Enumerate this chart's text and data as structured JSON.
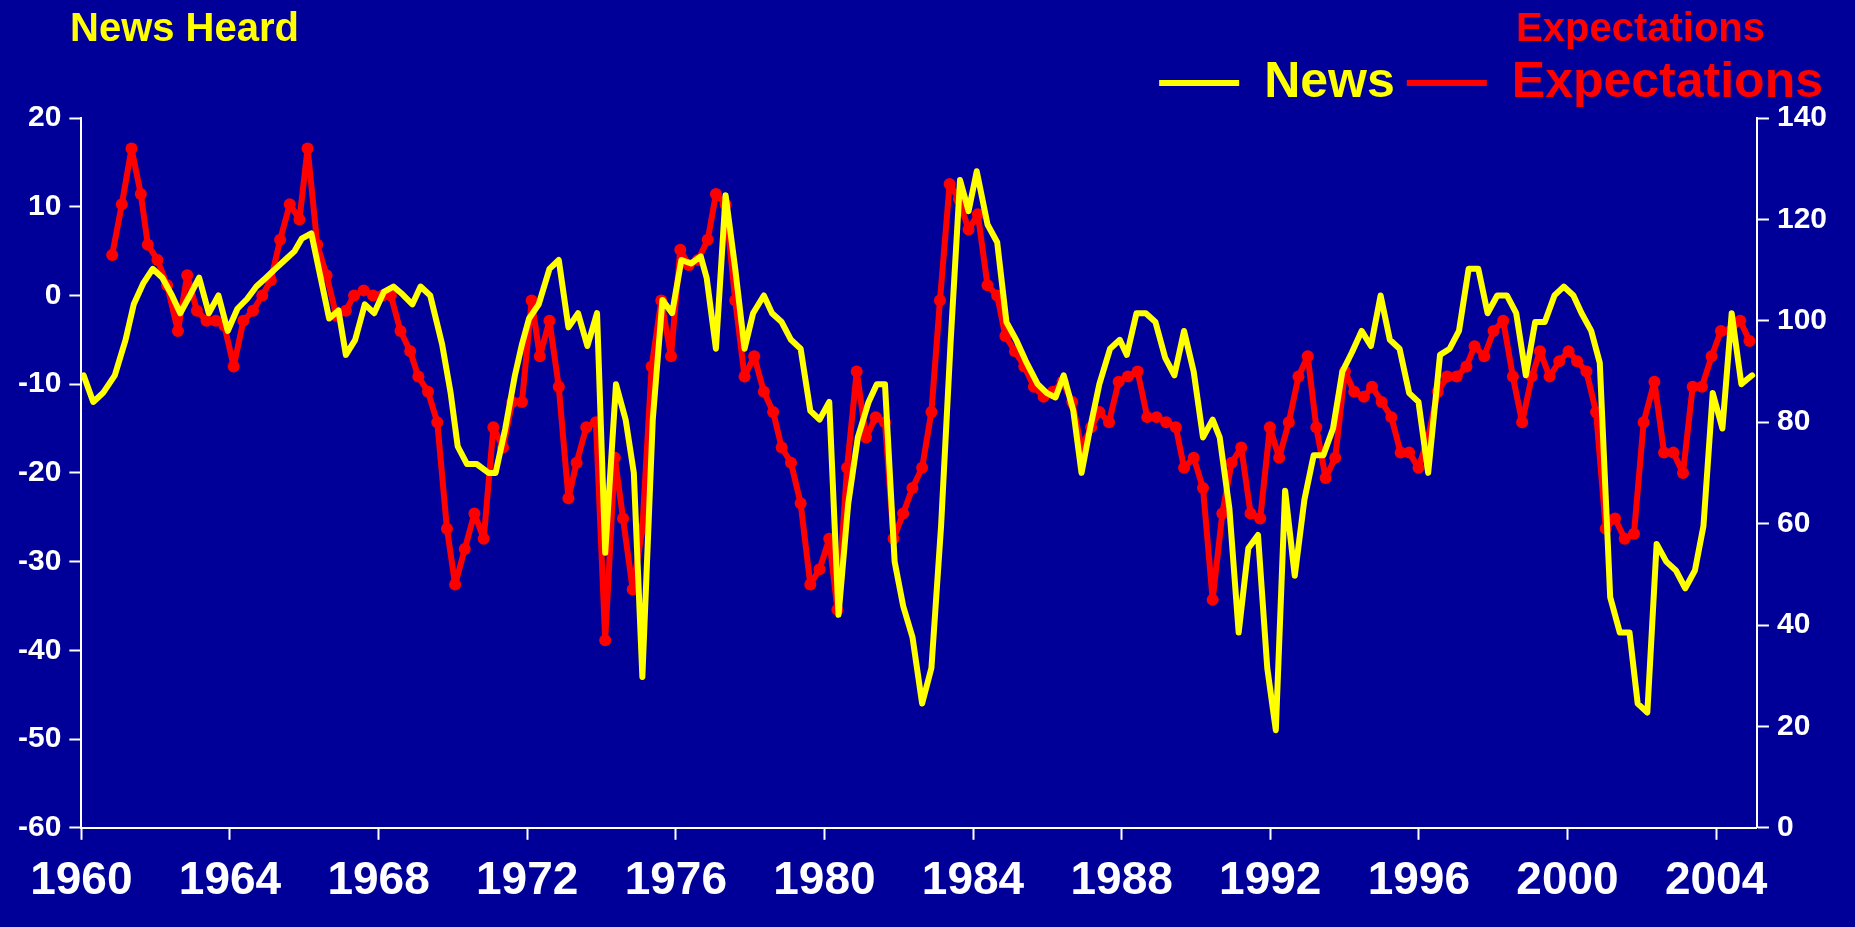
{
  "chart_data": {
    "type": "line",
    "ylabel": "News Heard",
    "y2label": "Expectations",
    "xlim": [
      1960,
      2005.1
    ],
    "xticks": [
      1960,
      1964,
      1968,
      1972,
      1976,
      1980,
      1984,
      1988,
      1992,
      1996,
      2000,
      2004
    ],
    "ylim": [
      -60,
      20
    ],
    "yticks": [
      -60,
      -50,
      -40,
      -30,
      -20,
      -10,
      0,
      10,
      20
    ],
    "y2lim": [
      0,
      140
    ],
    "y2ticks": [
      0,
      20,
      40,
      60,
      80,
      100,
      120,
      140
    ],
    "grid": false,
    "legend": "top right",
    "line_style": "solid",
    "series": [
      {
        "name": "News",
        "color": "#ffff00",
        "marker": "none",
        "x": [
          1960.06,
          1960.32,
          1960.58,
          1960.9,
          1961.19,
          1961.41,
          1961.67,
          1961.92,
          1962.18,
          1962.44,
          1962.66,
          1962.92,
          1963.17,
          1963.43,
          1963.69,
          1963.94,
          1964.2,
          1964.46,
          1964.71,
          1964.97,
          1965.22,
          1965.48,
          1965.74,
          1965.93,
          1966.19,
          1966.44,
          1966.67,
          1966.92,
          1967.12,
          1967.37,
          1967.63,
          1967.88,
          1968.14,
          1968.4,
          1968.65,
          1968.91,
          1969.13,
          1969.39,
          1969.71,
          1969.94,
          1970.13,
          1970.38,
          1970.64,
          1970.96,
          1971.15,
          1971.41,
          1971.67,
          1971.86,
          1972.05,
          1972.31,
          1972.6,
          1972.85,
          1973.11,
          1973.37,
          1973.62,
          1973.88,
          1974.1,
          1974.39,
          1974.65,
          1974.87,
          1975.1,
          1975.38,
          1975.64,
          1975.9,
          1976.15,
          1976.41,
          1976.67,
          1976.83,
          1977.08,
          1977.34,
          1977.6,
          1977.85,
          1978.08,
          1978.37,
          1978.59,
          1978.85,
          1979.1,
          1979.36,
          1979.62,
          1979.87,
          1980.13,
          1980.38,
          1980.64,
          1980.9,
          1981.19,
          1981.41,
          1981.63,
          1981.89,
          1982.12,
          1982.37,
          1982.63,
          1982.88,
          1983.14,
          1983.4,
          1983.65,
          1983.88,
          1984.1,
          1984.39,
          1984.65,
          1984.9,
          1985.16,
          1985.42,
          1985.74,
          1985.99,
          1986.22,
          1986.44,
          1986.7,
          1986.92,
          1987.15,
          1987.4,
          1987.69,
          1987.95,
          1988.14,
          1988.4,
          1988.65,
          1988.91,
          1989.17,
          1989.42,
          1989.68,
          1989.94,
          1990.19,
          1990.45,
          1990.64,
          1990.9,
          1991.15,
          1991.41,
          1991.67,
          1991.92,
          1992.15,
          1992.4,
          1992.66,
          1992.92,
          1993.17,
          1993.43,
          1993.69,
          1993.94,
          1994.2,
          1994.46,
          1994.71,
          1994.97,
          1995.22,
          1995.48,
          1995.74,
          1995.99,
          1996.25,
          1996.57,
          1996.83,
          1997.08,
          1997.34,
          1997.6,
          1997.85,
          1998.11,
          1998.37,
          1998.62,
          1998.88,
          1999.13,
          1999.39,
          1999.65,
          1999.9,
          2000.16,
          2000.38,
          2000.64,
          2000.87,
          2001.15,
          2001.41,
          2001.67,
          2001.89,
          2002.15,
          2002.4,
          2002.66,
          2002.92,
          2003.17,
          2003.43,
          2003.66,
          2003.91,
          2004.17,
          2004.42,
          2004.68,
          2004.97
        ],
        "values": [
          -9,
          -12,
          -11,
          -9,
          -5,
          -1,
          1.4,
          3,
          2,
          0,
          -2,
          0,
          2,
          -2,
          0,
          -4,
          -1.5,
          -0.4,
          1,
          2,
          3,
          4,
          5,
          6.4,
          7,
          2,
          -2.6,
          -1.7,
          -6.7,
          -5,
          -1,
          -2,
          0.4,
          1,
          0.1,
          -1,
          1,
          0,
          -5.5,
          -11,
          -17,
          -19,
          -19,
          -20,
          -20,
          -15,
          -9,
          -5.5,
          -2.6,
          -1,
          3,
          4,
          -3.6,
          -2,
          -5.7,
          -2,
          -29,
          -10,
          -14,
          -20,
          -43,
          -14,
          -0.5,
          -2,
          4,
          3.6,
          4.4,
          2,
          -6,
          11.3,
          3,
          -6,
          -2,
          0,
          -2,
          -3,
          -5,
          -6,
          -13,
          -14,
          -12,
          -36,
          -23.5,
          -16,
          -12,
          -10,
          -10,
          -30,
          -35,
          -38.5,
          -46,
          -42,
          -26,
          -5,
          13,
          9.5,
          14,
          8,
          6,
          -3,
          -5,
          -7.4,
          -10,
          -11,
          -11.5,
          -9,
          -13,
          -20,
          -15,
          -10,
          -6,
          -5,
          -6.7,
          -2,
          -2,
          -3,
          -7,
          -9,
          -4,
          -8.6,
          -16,
          -14,
          -16,
          -24,
          -38,
          -28.5,
          -27,
          -42,
          -49,
          -22,
          -31.6,
          -23,
          -18,
          -18,
          -15,
          -8.6,
          -6.4,
          -4,
          -5.7,
          0,
          -5,
          -6,
          -11,
          -12,
          -20,
          -6.7,
          -6,
          -4,
          3,
          3,
          -2,
          0,
          0,
          -2,
          -9,
          -3,
          -3,
          0,
          1,
          0,
          -2,
          -4,
          -7.6,
          -34,
          -38,
          -38,
          -46,
          -47,
          -28,
          -30,
          -31,
          -33,
          -31,
          -26,
          -11,
          -15,
          -2,
          -10,
          -9
        ]
      },
      {
        "name": "Expectations",
        "color": "#ff0000",
        "marker": "circle",
        "axis": "y2",
        "x": [
          1960.83,
          1961.09,
          1961.35,
          1961.6,
          1961.79,
          1962.05,
          1962.31,
          1962.6,
          1962.85,
          1963.11,
          1963.37,
          1963.62,
          1963.85,
          1964.1,
          1964.36,
          1964.62,
          1964.87,
          1965.1,
          1965.35,
          1965.61,
          1965.87,
          1966.09,
          1966.35,
          1966.6,
          1966.86,
          1967.12,
          1967.34,
          1967.6,
          1967.85,
          1968.11,
          1968.33,
          1968.59,
          1968.85,
          1969.07,
          1969.33,
          1969.58,
          1969.84,
          1970.06,
          1970.32,
          1970.58,
          1970.83,
          1971.09,
          1971.35,
          1971.6,
          1971.86,
          1972.12,
          1972.34,
          1972.6,
          1972.85,
          1973.11,
          1973.33,
          1973.59,
          1973.85,
          1974.1,
          1974.36,
          1974.58,
          1974.84,
          1975.1,
          1975.35,
          1975.61,
          1975.87,
          1976.12,
          1976.35,
          1976.6,
          1976.86,
          1977.08,
          1977.34,
          1977.6,
          1977.85,
          1978.11,
          1978.37,
          1978.62,
          1978.85,
          1979.1,
          1979.36,
          1979.62,
          1979.87,
          1980.13,
          1980.35,
          1980.61,
          1980.87,
          1981.12,
          1981.38,
          1981.63,
          1981.86,
          1982.12,
          1982.37,
          1982.63,
          1982.88,
          1983.11,
          1983.37,
          1983.62,
          1983.88,
          1984.13,
          1984.39,
          1984.65,
          1984.87,
          1985.13,
          1985.38,
          1985.64,
          1985.9,
          1986.15,
          1986.41,
          1986.67,
          1986.92,
          1987.18,
          1987.4,
          1987.66,
          1987.92,
          1988.17,
          1988.43,
          1988.69,
          1988.94,
          1989.2,
          1989.46,
          1989.68,
          1989.94,
          1990.19,
          1990.45,
          1990.71,
          1990.96,
          1991.22,
          1991.47,
          1991.73,
          1991.99,
          1992.24,
          1992.5,
          1992.76,
          1993.01,
          1993.24,
          1993.49,
          1993.75,
          1994.01,
          1994.26,
          1994.52,
          1994.74,
          1995,
          1995.26,
          1995.51,
          1995.74,
          1995.99,
          1996.25,
          1996.51,
          1996.76,
          1997.02,
          1997.28,
          1997.5,
          1997.76,
          1998.01,
          1998.27,
          1998.53,
          1998.78,
          1999.04,
          1999.26,
          1999.52,
          1999.78,
          2000.03,
          2000.26,
          2000.51,
          2000.77,
          2001.03,
          2001.28,
          2001.54,
          2001.79,
          2002.05,
          2002.34,
          2002.6,
          2002.85,
          2003.11,
          2003.37,
          2003.62,
          2003.88,
          2004.13,
          2004.39,
          2004.65,
          2004.9
        ],
        "values": [
          113,
          123,
          134,
          125,
          115,
          112,
          107,
          98,
          109,
          102,
          100,
          100,
          99,
          91,
          100,
          102,
          105,
          108,
          116,
          123,
          120,
          134,
          115,
          109,
          101,
          102,
          105,
          106,
          105,
          105,
          105,
          98,
          94,
          89,
          86,
          80,
          59,
          48,
          55,
          62,
          57,
          79,
          75,
          84,
          84,
          104,
          93,
          100,
          87,
          65,
          72,
          79,
          80,
          37,
          73,
          61,
          47,
          59,
          91,
          104,
          93,
          114,
          111,
          112,
          116,
          125,
          123,
          104,
          89,
          93,
          86,
          82,
          75,
          72,
          64,
          48,
          51,
          57,
          43,
          71,
          90,
          77,
          81,
          80,
          57,
          62,
          67,
          71,
          82,
          104,
          127,
          124,
          118,
          121,
          107,
          105,
          97,
          94,
          91,
          87,
          85,
          86,
          88,
          84,
          75,
          79,
          82,
          80,
          88,
          89,
          90,
          81,
          81,
          80,
          79,
          71,
          73,
          67,
          45,
          62,
          72,
          75,
          62,
          61,
          79,
          73,
          80,
          89,
          93,
          79,
          69,
          73,
          90,
          86,
          85,
          87,
          84,
          81,
          74,
          74,
          71,
          77,
          86,
          89,
          89,
          91,
          95,
          93,
          98,
          100,
          89,
          80,
          89,
          94,
          89,
          92,
          94,
          92,
          90,
          82,
          59,
          61,
          57,
          58,
          80,
          88,
          74,
          74,
          70,
          87,
          87,
          93,
          98,
          98,
          100,
          96
        ]
      }
    ]
  }
}
